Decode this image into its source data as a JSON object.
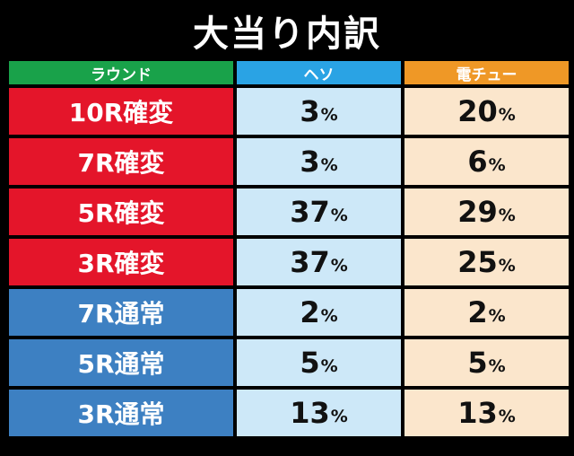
{
  "title": "大当り内訳",
  "headers": {
    "round": "ラウンド",
    "heso": "ヘソ",
    "den": "電チュー"
  },
  "colors": {
    "kakuhen": "#e4152a",
    "tsujo": "#3d80c2",
    "round_header": "#19a24a",
    "heso_header": "#2aa3e4",
    "den_header": "#ef9826"
  },
  "rows": [
    {
      "label": "10R確変",
      "type": "kakuhen",
      "heso": "3",
      "den": "20"
    },
    {
      "label": "7R確変",
      "type": "kakuhen",
      "heso": "3",
      "den": "6"
    },
    {
      "label": "5R確変",
      "type": "kakuhen",
      "heso": "37",
      "den": "29"
    },
    {
      "label": "3R確変",
      "type": "kakuhen",
      "heso": "37",
      "den": "25"
    },
    {
      "label": "7R通常",
      "type": "tsujo",
      "heso": "2",
      "den": "2"
    },
    {
      "label": "5R通常",
      "type": "tsujo",
      "heso": "5",
      "den": "5"
    },
    {
      "label": "3R通常",
      "type": "tsujo",
      "heso": "13",
      "den": "13"
    }
  ],
  "percent_sign": "%"
}
